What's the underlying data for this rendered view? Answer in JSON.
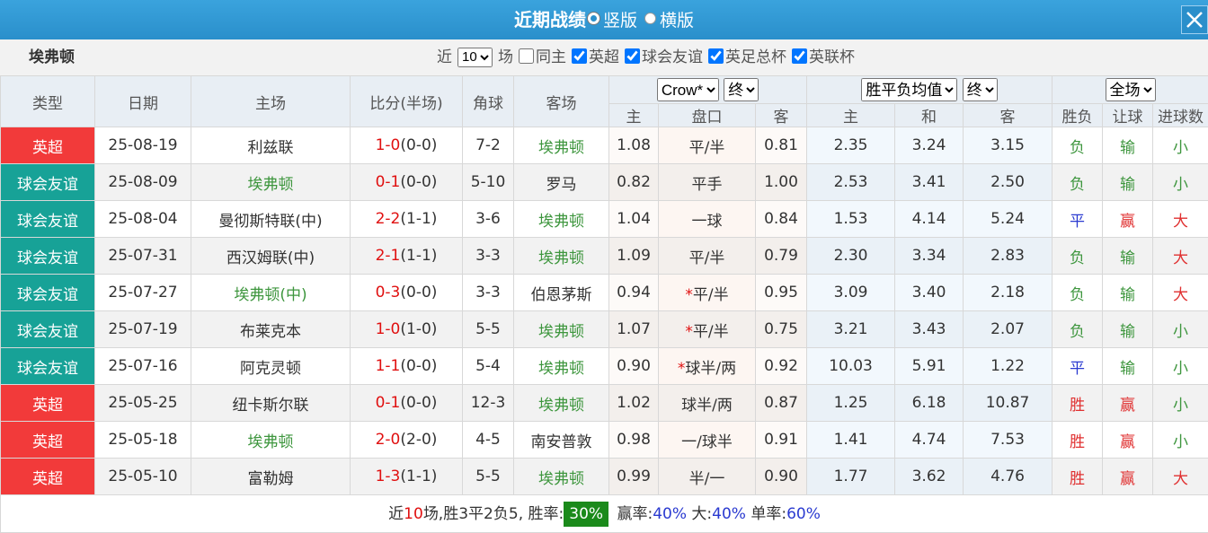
{
  "header": {
    "title": "近期战绩",
    "layout_options": [
      "竖版",
      "横版"
    ]
  },
  "filter": {
    "team": "埃弗顿",
    "prefix": "近",
    "count": "10",
    "suffix": "场",
    "same_home": "同主",
    "competitions": [
      "英超",
      "球会友谊",
      "英足总杯",
      "英联杯"
    ]
  },
  "table": {
    "columns": [
      "类型",
      "日期",
      "主场",
      "比分(半场)",
      "角球",
      "客场"
    ],
    "asian": {
      "company": "Crow*",
      "stage": "终",
      "columns": [
        "主",
        "盘口",
        "客"
      ]
    },
    "euro": {
      "company": "胜平负均值",
      "stage": "终",
      "columns": [
        "主",
        "和",
        "客"
      ]
    },
    "result": {
      "scope": "全场",
      "columns": [
        "胜负",
        "让球",
        "进球数"
      ]
    },
    "rows": [
      {
        "type": "英超",
        "date": "25-08-19",
        "home": "利兹联",
        "score": "1-0",
        "half": "(0-0)",
        "corners": "7-2",
        "away": "埃弗顿",
        "asian": [
          "1.08",
          "平/半",
          "0.81"
        ],
        "euro": [
          "2.35",
          "3.24",
          "3.15"
        ],
        "result": [
          "负",
          "输",
          "小"
        ]
      },
      {
        "type": "球会友谊",
        "date": "25-08-09",
        "home": "埃弗顿",
        "score": "0-1",
        "half": "(0-0)",
        "corners": "5-10",
        "away": "罗马",
        "asian": [
          "0.82",
          "平手",
          "1.00"
        ],
        "euro": [
          "2.53",
          "3.41",
          "2.50"
        ],
        "result": [
          "负",
          "输",
          "小"
        ]
      },
      {
        "type": "球会友谊",
        "date": "25-08-04",
        "home": "曼彻斯特联(中)",
        "score": "2-2",
        "half": "(1-1)",
        "corners": "3-6",
        "away": "埃弗顿",
        "asian": [
          "1.04",
          "一球",
          "0.84"
        ],
        "euro": [
          "1.53",
          "4.14",
          "5.24"
        ],
        "result": [
          "平",
          "赢",
          "大"
        ]
      },
      {
        "type": "球会友谊",
        "date": "25-07-31",
        "home": "西汉姆联(中)",
        "score": "2-1",
        "half": "(1-1)",
        "corners": "3-3",
        "away": "埃弗顿",
        "asian": [
          "1.09",
          "平/半",
          "0.79"
        ],
        "euro": [
          "2.30",
          "3.34",
          "2.83"
        ],
        "result": [
          "负",
          "输",
          "大"
        ]
      },
      {
        "type": "球会友谊",
        "date": "25-07-27",
        "home": "埃弗顿(中)",
        "score": "0-3",
        "half": "(0-0)",
        "corners": "3-3",
        "away": "伯恩茅斯",
        "hot": "*",
        "asian": [
          "0.94",
          "平/半",
          "0.95"
        ],
        "euro": [
          "3.09",
          "3.40",
          "2.18"
        ],
        "result": [
          "负",
          "输",
          "大"
        ]
      },
      {
        "type": "球会友谊",
        "date": "25-07-19",
        "home": "布莱克本",
        "score": "1-0",
        "half": "(1-0)",
        "corners": "5-5",
        "away": "埃弗顿",
        "hot": "*",
        "asian": [
          "1.07",
          "平/半",
          "0.75"
        ],
        "euro": [
          "3.21",
          "3.43",
          "2.07"
        ],
        "result": [
          "负",
          "输",
          "小"
        ]
      },
      {
        "type": "球会友谊",
        "date": "25-07-16",
        "home": "阿克灵顿",
        "score": "1-1",
        "half": "(0-0)",
        "corners": "5-4",
        "away": "埃弗顿",
        "hot": "*",
        "asian": [
          "0.90",
          "球半/两",
          "0.92"
        ],
        "euro": [
          "10.03",
          "5.91",
          "1.22"
        ],
        "result": [
          "平",
          "输",
          "小"
        ]
      },
      {
        "type": "英超",
        "date": "25-05-25",
        "home": "纽卡斯尔联",
        "score": "0-1",
        "half": "(0-0)",
        "corners": "12-3",
        "away": "埃弗顿",
        "asian": [
          "1.02",
          "球半/两",
          "0.87"
        ],
        "euro": [
          "1.25",
          "6.18",
          "10.87"
        ],
        "result": [
          "胜",
          "赢",
          "小"
        ]
      },
      {
        "type": "英超",
        "date": "25-05-18",
        "home": "埃弗顿",
        "score": "2-0",
        "half": "(2-0)",
        "corners": "4-5",
        "away": "南安普敦",
        "asian": [
          "0.98",
          "一/球半",
          "0.91"
        ],
        "euro": [
          "1.41",
          "4.74",
          "7.53"
        ],
        "result": [
          "胜",
          "赢",
          "小"
        ]
      },
      {
        "type": "英超",
        "date": "25-05-10",
        "home": "富勒姆",
        "score": "1-3",
        "half": "(1-1)",
        "corners": "5-5",
        "away": "埃弗顿",
        "asian": [
          "0.99",
          "半/一",
          "0.90"
        ],
        "euro": [
          "1.77",
          "3.62",
          "4.76"
        ],
        "result": [
          "胜",
          "赢",
          "大"
        ]
      }
    ]
  },
  "footer": [
    {
      "text": "近"
    },
    {
      "text": "10",
      "style": "red"
    },
    {
      "text": "场,胜"
    },
    {
      "text": "3"
    },
    {
      "text": "平"
    },
    {
      "text": "2"
    },
    {
      "text": "负"
    },
    {
      "text": "5"
    },
    {
      "text": ", 胜率:"
    },
    {
      "text": "30%",
      "style": "badge"
    },
    {
      "text": " 赢率:"
    },
    {
      "text": "40%",
      "style": "blue"
    },
    {
      "text": " 大:"
    },
    {
      "text": "40%",
      "style": "blue"
    },
    {
      "text": " 单率:"
    },
    {
      "text": "60%",
      "style": "blue"
    }
  ],
  "colors": {
    "英超": "#f23a3a",
    "球会友谊": "#17a297",
    "team": "#3e963e",
    "score": "#e01010",
    "hot": "#e01010",
    "胜": "#e03030",
    "平": "#2a3ad0",
    "负": "#3e963e",
    "赢": "#e03030",
    "输": "#3e963e",
    "大": "#e03030",
    "小": "#3e963e"
  }
}
